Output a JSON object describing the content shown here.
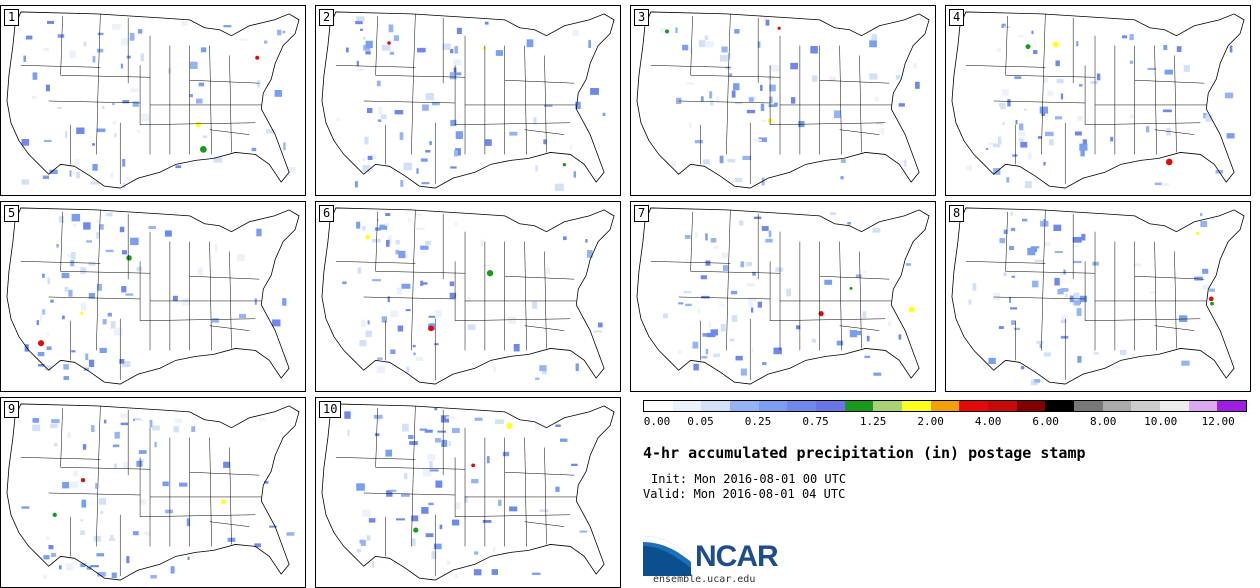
{
  "panels": [
    {
      "label": "1"
    },
    {
      "label": "2"
    },
    {
      "label": "3"
    },
    {
      "label": "4"
    },
    {
      "label": "5"
    },
    {
      "label": "6"
    },
    {
      "label": "7"
    },
    {
      "label": "8"
    },
    {
      "label": "9"
    },
    {
      "label": "10"
    }
  ],
  "legend": {
    "colors": [
      "#ffffff",
      "#ecf2fc",
      "#d2e1f8",
      "#94b4f4",
      "#7a9ff0",
      "#6e88ec",
      "#6a75e6",
      "#189a1c",
      "#a8d274",
      "#ffff1c",
      "#f2a00a",
      "#e40a0a",
      "#c80a0a",
      "#820000",
      "#000000",
      "#787878",
      "#aaaaaa",
      "#cccccc",
      "#ececec",
      "#dca8f2",
      "#a01ee4"
    ],
    "tick_labels": [
      "0.00",
      "0.05",
      "0.25",
      "0.75",
      "1.25",
      "2.00",
      "4.00",
      "6.00",
      "8.00",
      "10.00",
      "12.00"
    ]
  },
  "title": "4-hr accumulated precipitation (in) postage stamp",
  "init": "Init: Mon 2016-08-01 00 UTC",
  "valid": "Valid: Mon 2016-08-01 04 UTC",
  "logo": {
    "word": "NCAR",
    "url": "ensemble.ucar.edu",
    "color": "#1d4e89"
  }
}
